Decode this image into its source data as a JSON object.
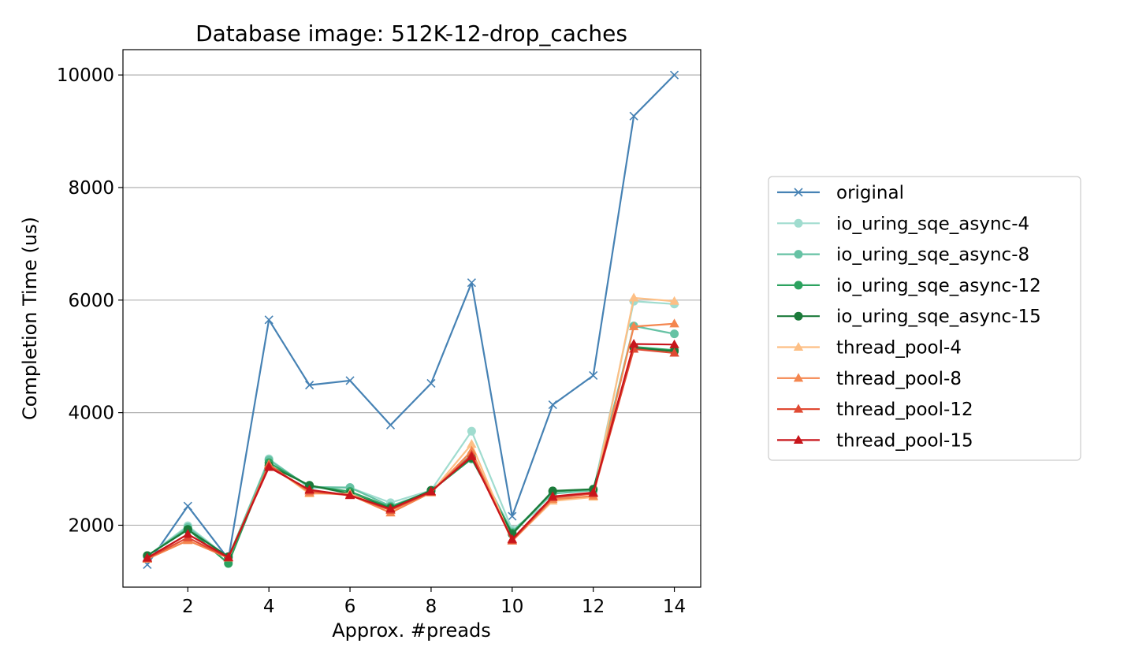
{
  "chart_data": {
    "type": "line",
    "title": "Database image: 512K-12-drop_caches",
    "xlabel": "Approx. #preads",
    "ylabel": "Completion Time (us)",
    "xlim": [
      0.4,
      14.65
    ],
    "ylim": [
      900,
      10450
    ],
    "xticks": [
      2,
      4,
      6,
      8,
      10,
      12,
      14
    ],
    "yticks": [
      2000,
      4000,
      6000,
      8000,
      10000
    ],
    "grid": "horizontal",
    "legend_position": "right",
    "x": [
      1,
      2,
      3,
      4,
      5,
      6,
      7,
      8,
      9,
      10,
      11,
      12,
      13,
      14
    ],
    "series": [
      {
        "name": "original",
        "color": "#4682b4",
        "marker": "x",
        "values": [
          1300,
          2340,
          1400,
          5650,
          4490,
          4570,
          3780,
          4520,
          6310,
          2160,
          4140,
          4660,
          9270,
          10000
        ]
      },
      {
        "name": "io_uring_sqe_async-4",
        "color": "#a0dccf",
        "marker": "o",
        "values": [
          1450,
          1990,
          1420,
          3180,
          2660,
          2670,
          2400,
          2620,
          3670,
          1920,
          2460,
          2590,
          5980,
          5930
        ]
      },
      {
        "name": "io_uring_sqe_async-8",
        "color": "#66c2a4",
        "marker": "o",
        "values": [
          1450,
          1960,
          1420,
          3160,
          2680,
          2670,
          2340,
          2600,
          3260,
          1880,
          2560,
          2620,
          5540,
          5400
        ]
      },
      {
        "name": "io_uring_sqe_async-12",
        "color": "#2ca25f",
        "marker": "o",
        "values": [
          1460,
          1930,
          1320,
          3110,
          2700,
          2600,
          2320,
          2610,
          3180,
          1860,
          2600,
          2640,
          5170,
          5110
        ]
      },
      {
        "name": "io_uring_sqe_async-15",
        "color": "#1b7a3a",
        "marker": "o",
        "values": [
          1460,
          1920,
          1440,
          3060,
          2710,
          2560,
          2300,
          2620,
          3200,
          1840,
          2610,
          2640,
          5150,
          5090
        ]
      },
      {
        "name": "thread_pool-4",
        "color": "#fdbf85",
        "marker": "^",
        "values": [
          1400,
          1730,
          1420,
          3080,
          2560,
          2560,
          2260,
          2580,
          3440,
          1720,
          2430,
          2500,
          6040,
          5980
        ]
      },
      {
        "name": "thread_pool-8",
        "color": "#f4864f",
        "marker": "^",
        "values": [
          1400,
          1730,
          1420,
          3080,
          2580,
          2540,
          2220,
          2580,
          3320,
          1720,
          2460,
          2520,
          5530,
          5580
        ]
      },
      {
        "name": "thread_pool-12",
        "color": "#e04a33",
        "marker": "^",
        "values": [
          1410,
          1780,
          1420,
          3060,
          2610,
          2530,
          2270,
          2590,
          3250,
          1730,
          2490,
          2560,
          5130,
          5060
        ]
      },
      {
        "name": "thread_pool-15",
        "color": "#c8151b",
        "marker": "^",
        "values": [
          1420,
          1840,
          1430,
          3030,
          2630,
          2530,
          2290,
          2600,
          3220,
          1750,
          2510,
          2580,
          5220,
          5210
        ]
      }
    ]
  }
}
